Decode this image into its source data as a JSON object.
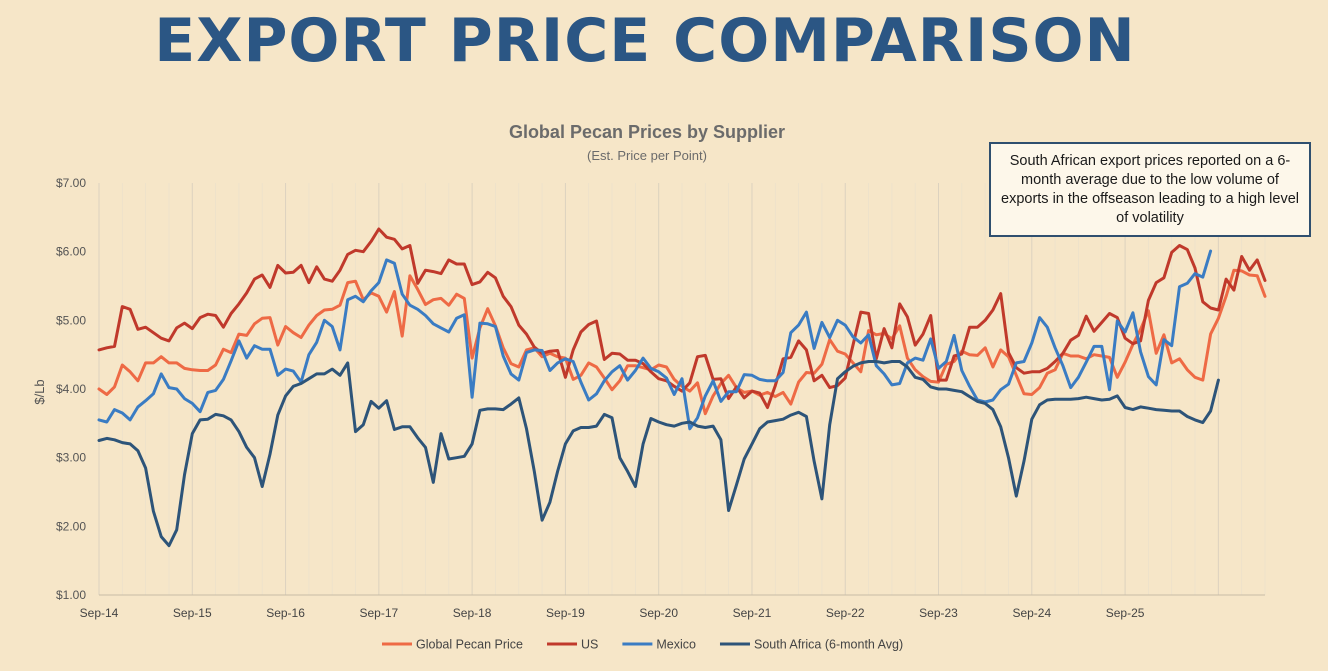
{
  "headline": "EXPORT PRICE COMPARISON",
  "annotation": "South African export prices reported on a 6-month average due to the low volume of exports in the offseason leading to a high level of volatility",
  "chart_data": {
    "type": "line",
    "title": "Global Pecan Prices by Supplier",
    "subtitle": "(Est. Price per Point)",
    "ylabel": "$/Lb",
    "xlabel": "",
    "ylim": [
      1,
      7
    ],
    "yticks": [
      1,
      2,
      3,
      4,
      5,
      6,
      7
    ],
    "ytick_labels": [
      "$1.00",
      "$2.00",
      "$3.00",
      "$4.00",
      "$5.00",
      "$6.00",
      "$7.00"
    ],
    "x_tick_labels": [
      "Sep-14",
      "Sep-15",
      "Sep-16",
      "Sep-17",
      "Sep-18",
      "Sep-19",
      "Sep-20",
      "Sep-21",
      "Sep-22",
      "Sep-23",
      "Sep-24",
      "Sep-25"
    ],
    "x_start": "Sep-14",
    "x_end": "Jul-26",
    "x_step": "month",
    "grid": "vertical",
    "legend_position": "bottom",
    "series": [
      {
        "name": "Global Pecan Price",
        "color": "#ee6a45",
        "values": [
          4.0,
          3.92,
          4.03,
          4.35,
          4.25,
          4.12,
          4.38,
          4.38,
          4.47,
          4.38,
          4.38,
          4.3,
          4.28,
          4.27,
          4.27,
          4.35,
          4.58,
          4.53,
          4.8,
          4.78,
          4.95,
          5.03,
          5.04,
          4.64,
          4.91,
          4.82,
          4.75,
          4.93,
          5.07,
          5.15,
          5.16,
          5.22,
          5.55,
          5.57,
          5.3,
          5.4,
          5.35,
          5.12,
          5.42,
          4.77,
          5.65,
          5.45,
          5.23,
          5.3,
          5.32,
          5.22,
          5.38,
          5.32,
          4.45,
          4.89,
          5.17,
          4.92,
          4.6,
          4.37,
          4.32,
          4.57,
          4.6,
          4.47,
          4.52,
          4.47,
          4.45,
          4.14,
          4.2,
          4.38,
          4.32,
          4.16,
          3.99,
          4.12,
          4.34,
          4.34,
          4.31,
          4.28,
          4.35,
          4.32,
          4.14,
          4.04,
          3.97,
          4.09,
          3.64,
          3.9,
          4.08,
          4.2,
          4.02,
          3.95,
          3.97,
          3.91,
          3.95,
          3.89,
          3.95,
          3.78,
          4.1,
          4.24,
          4.23,
          4.36,
          4.72,
          4.55,
          4.51,
          4.38,
          4.25,
          4.85,
          4.79,
          4.81,
          4.73,
          4.92,
          4.45,
          4.28,
          4.18,
          4.11,
          4.1,
          4.36,
          4.4,
          4.55,
          4.5,
          4.49,
          4.6,
          4.32,
          4.57,
          4.47,
          4.2,
          3.93,
          3.92,
          4.02,
          4.23,
          4.28,
          4.52,
          4.48,
          4.48,
          4.44,
          4.5,
          4.48,
          4.46,
          4.17,
          4.39,
          4.65,
          4.87,
          5.14,
          4.52,
          4.79,
          4.38,
          4.44,
          4.28,
          4.17,
          4.13,
          4.8,
          5.03,
          5.35,
          5.73,
          5.72,
          5.66,
          5.65,
          5.35
        ]
      },
      {
        "name": "US",
        "color": "#c0392b",
        "values": [
          4.57,
          4.6,
          4.62,
          5.2,
          5.16,
          4.87,
          4.9,
          4.82,
          4.74,
          4.7,
          4.89,
          4.96,
          4.88,
          5.04,
          5.09,
          5.07,
          4.9,
          5.1,
          5.24,
          5.4,
          5.6,
          5.66,
          5.48,
          5.8,
          5.69,
          5.7,
          5.8,
          5.55,
          5.78,
          5.6,
          5.57,
          5.73,
          5.96,
          6.02,
          6.0,
          6.15,
          6.33,
          6.21,
          6.18,
          6.04,
          6.09,
          5.54,
          5.73,
          5.71,
          5.68,
          5.88,
          5.82,
          5.82,
          5.52,
          5.56,
          5.7,
          5.62,
          5.35,
          5.2,
          4.93,
          4.8,
          4.61,
          4.52,
          4.55,
          4.56,
          4.17,
          4.57,
          4.83,
          4.94,
          4.99,
          4.43,
          4.52,
          4.51,
          4.42,
          4.42,
          4.37,
          4.25,
          4.15,
          4.12,
          4.04,
          3.97,
          4.09,
          4.47,
          4.49,
          4.14,
          4.15,
          3.86,
          4.03,
          3.87,
          3.97,
          3.94,
          3.73,
          4.05,
          4.44,
          4.46,
          4.7,
          4.57,
          4.12,
          4.2,
          4.02,
          4.05,
          4.16,
          4.64,
          5.12,
          5.1,
          4.44,
          4.88,
          4.6,
          5.24,
          5.05,
          4.64,
          4.8,
          5.07,
          4.13,
          4.13,
          4.48,
          4.51,
          4.9,
          4.9,
          5.0,
          5.15,
          5.39,
          4.53,
          4.31,
          4.23,
          4.25,
          4.25,
          4.3,
          4.4,
          4.52,
          4.71,
          4.78,
          5.06,
          4.84,
          4.97,
          5.1,
          5.04,
          4.74,
          4.66,
          4.7,
          5.29,
          5.55,
          5.62,
          5.99,
          6.09,
          6.03,
          5.76,
          5.27,
          5.18,
          5.15,
          5.6,
          5.44,
          5.93,
          5.73,
          5.88,
          5.58
        ]
      },
      {
        "name": "Mexico",
        "color": "#3a7cc3",
        "values": [
          3.55,
          3.52,
          3.7,
          3.65,
          3.55,
          3.74,
          3.83,
          3.93,
          4.22,
          4.02,
          4.0,
          3.86,
          3.79,
          3.67,
          3.95,
          3.98,
          4.14,
          4.41,
          4.7,
          4.45,
          4.63,
          4.58,
          4.58,
          4.2,
          4.29,
          4.26,
          4.1,
          4.5,
          4.68,
          5.0,
          4.91,
          4.57,
          5.3,
          5.35,
          5.27,
          5.43,
          5.55,
          5.88,
          5.83,
          5.38,
          5.22,
          5.16,
          5.07,
          4.95,
          4.89,
          4.83,
          5.03,
          5.08,
          3.88,
          4.96,
          4.95,
          4.91,
          4.48,
          4.22,
          4.13,
          4.53,
          4.57,
          4.56,
          4.27,
          4.38,
          4.44,
          4.4,
          4.1,
          3.84,
          3.93,
          4.12,
          4.25,
          4.34,
          4.13,
          4.27,
          4.45,
          4.3,
          4.25,
          4.16,
          3.92,
          4.15,
          3.42,
          3.58,
          3.9,
          4.12,
          3.82,
          3.96,
          3.96,
          4.21,
          4.2,
          4.14,
          4.12,
          4.12,
          4.24,
          4.82,
          4.93,
          5.12,
          4.59,
          4.97,
          4.75,
          5.0,
          4.93,
          4.76,
          4.67,
          4.79,
          4.34,
          4.22,
          4.06,
          4.08,
          4.38,
          4.45,
          4.42,
          4.73,
          4.3,
          4.4,
          4.78,
          4.27,
          4.04,
          3.84,
          3.81,
          3.84,
          3.99,
          4.07,
          4.38,
          4.4,
          4.67,
          5.04,
          4.9,
          4.6,
          4.34,
          4.02,
          4.17,
          4.39,
          4.62,
          4.62,
          3.99,
          4.99,
          4.83,
          5.11,
          4.54,
          4.18,
          4.06,
          4.72,
          4.63,
          5.49,
          5.54,
          5.68,
          5.63,
          6.01
        ]
      },
      {
        "name": "South Africa (6-month Avg)",
        "color": "#2d5479",
        "values": [
          3.25,
          3.28,
          3.26,
          3.22,
          3.2,
          3.1,
          2.85,
          2.22,
          1.85,
          1.72,
          1.95,
          2.75,
          3.35,
          3.55,
          3.56,
          3.63,
          3.61,
          3.55,
          3.38,
          3.15,
          3.0,
          2.58,
          3.05,
          3.62,
          3.9,
          4.04,
          4.08,
          4.15,
          4.22,
          4.22,
          4.29,
          4.2,
          4.38,
          3.38,
          3.48,
          3.82,
          3.72,
          3.83,
          3.41,
          3.45,
          3.45,
          3.29,
          3.15,
          2.64,
          3.35,
          2.98,
          3.0,
          3.02,
          3.2,
          3.69,
          3.71,
          3.71,
          3.7,
          3.78,
          3.87,
          3.42,
          2.8,
          2.09,
          2.35,
          2.8,
          3.2,
          3.39,
          3.44,
          3.44,
          3.46,
          3.63,
          3.58,
          3.0,
          2.8,
          2.58,
          3.2,
          3.57,
          3.52,
          3.48,
          3.46,
          3.5,
          3.52,
          3.46,
          3.44,
          3.46,
          3.26,
          2.23,
          2.6,
          2.98,
          3.2,
          3.42,
          3.52,
          3.54,
          3.56,
          3.62,
          3.66,
          3.6,
          2.95,
          2.4,
          3.48,
          4.15,
          4.25,
          4.33,
          4.38,
          4.4,
          4.4,
          4.38,
          4.4,
          4.4,
          4.32,
          4.17,
          4.14,
          4.03,
          4.0,
          4.0,
          3.98,
          3.96,
          3.89,
          3.82,
          3.79,
          3.7,
          3.45,
          3.0,
          2.44,
          2.95,
          3.56,
          3.77,
          3.84,
          3.85,
          3.85,
          3.85,
          3.86,
          3.88,
          3.86,
          3.84,
          3.85,
          3.9,
          3.73,
          3.7,
          3.74,
          3.72,
          3.7,
          3.69,
          3.68,
          3.68,
          3.6,
          3.55,
          3.51,
          3.68,
          4.13
        ]
      }
    ]
  }
}
